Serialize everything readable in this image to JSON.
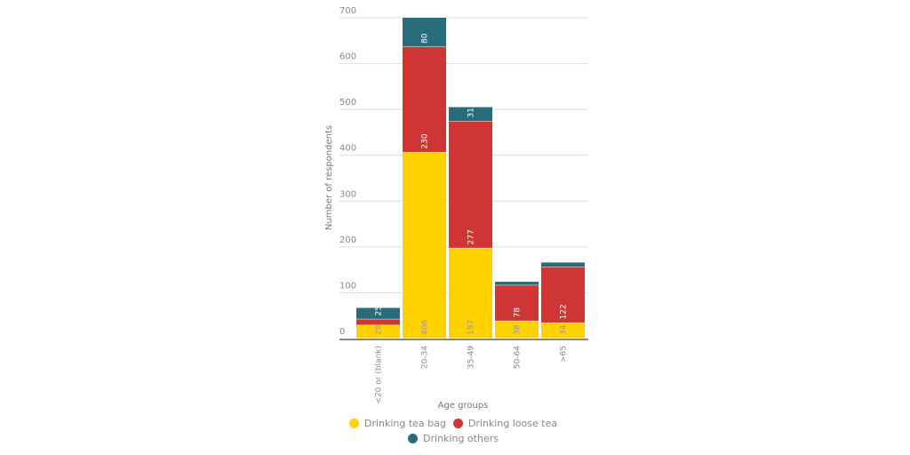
{
  "chart_data": {
    "type": "bar",
    "stacked": true,
    "categories": [
      "<20 or (blank)",
      "20-34",
      "35-49",
      "50-64",
      ">65"
    ],
    "series": [
      {
        "name": "Drinking tea bag",
        "color": "#FFD200",
        "values": [
          29,
          406,
          197,
          38,
          34
        ],
        "labels": [
          "29",
          "406",
          "197",
          "38",
          "34"
        ]
      },
      {
        "name": "Drinking loose tea",
        "color": "#CF3535",
        "values": [
          13,
          230,
          277,
          78,
          122
        ],
        "labels": [
          "",
          "230",
          "277",
          "78",
          "122"
        ]
      },
      {
        "name": "Drinking others",
        "color": "#286B7A",
        "values": [
          25,
          80,
          31,
          8,
          10
        ],
        "labels": [
          "25",
          "80",
          "31",
          "",
          ""
        ]
      }
    ],
    "xlabel": "Age groups",
    "ylabel": "Number of respondents",
    "ylim": [
      0,
      700
    ],
    "yticks": [
      0,
      100,
      200,
      300,
      400,
      500,
      600,
      700
    ],
    "grid": true,
    "legend": "bottom"
  }
}
